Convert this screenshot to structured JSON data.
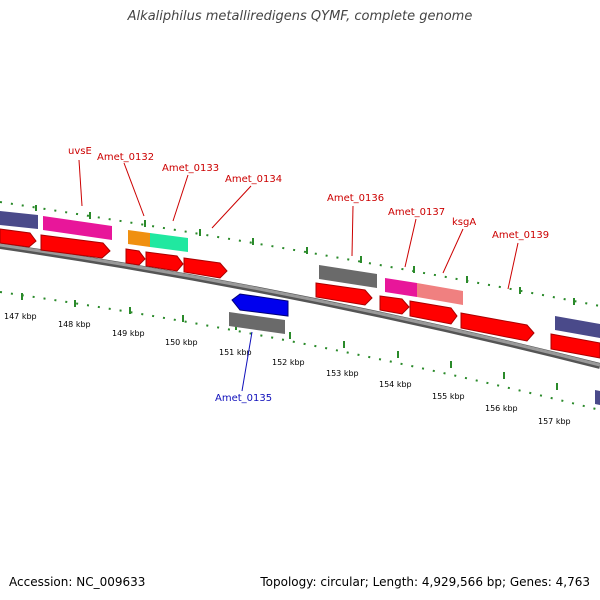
{
  "title": "Alkaliphilus metalliredigens QYMF, complete genome",
  "footer": {
    "accession": "Accession: NC_009633",
    "summary": "Topology: circular; Length: 4,929,566 bp; Genes: 4,763"
  },
  "gene_labels": {
    "uvsE": "uvsE",
    "amet_0132": "Amet_0132",
    "amet_0133": "Amet_0133",
    "amet_0134": "Amet_0134",
    "amet_0135": "Amet_0135",
    "amet_0136": "Amet_0136",
    "amet_0137": "Amet_0137",
    "ksga": "ksgA",
    "amet_0139": "Amet_0139"
  },
  "kbp_ticks": [
    "147 kbp",
    "148 kbp",
    "149 kbp",
    "150 kbp",
    "151 kbp",
    "152 kbp",
    "153 kbp",
    "154 kbp",
    "155 kbp",
    "156 kbp",
    "157 kbp"
  ],
  "colors": {
    "forward_gene": "#ff0000",
    "reverse_gene": "#0000ee",
    "label_forward": "#cc0000",
    "label_reverse": "#1010bb",
    "backbone": "#808080",
    "tick_green": "#2a8a2a"
  }
}
